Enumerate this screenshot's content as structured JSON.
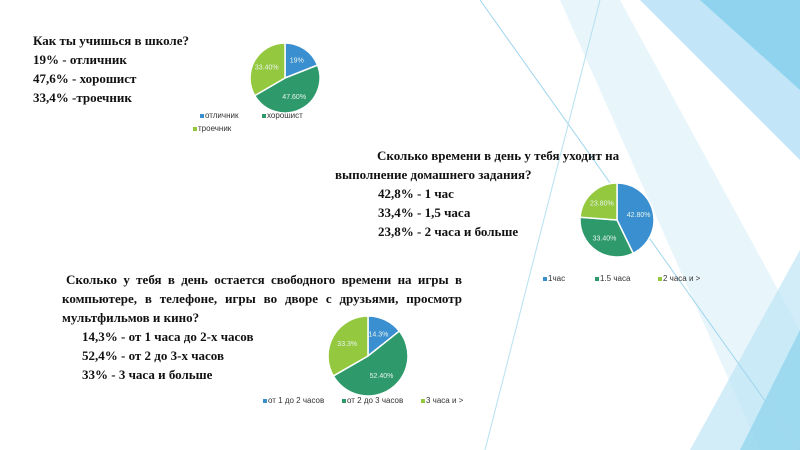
{
  "texts": [
    {
      "title": "Как ты учишься в школе?",
      "lines": [
        "19% - отличник",
        "47,6% - хорошист",
        "33,4%  -троечник"
      ]
    },
    {
      "title": "Сколько времени в день у тебя уходит на выполнение домашнего задания?",
      "lines": [
        "42,8% - 1 час",
        "33,4% - 1,5 часа",
        "23,8% - 2 часа и больше"
      ]
    },
    {
      "title": "Сколько у тебя в день остается свободного времени на игры в компьютере, в телефоне, игры во дворе с друзьями, просмотр мультфильмов и кино?",
      "lines": [
        "14,3% - от 1 часа до 2-х часов",
        "52,4% - от 2 до 3-х часов",
        "33% - 3 часа и больше"
      ]
    }
  ],
  "chart_data": [
    {
      "type": "pie",
      "categories": [
        "отличник",
        "хорошист",
        "троечник"
      ],
      "values": [
        19,
        47.6,
        33.4
      ],
      "value_labels": [
        "19%",
        "47.60%",
        "33.40%"
      ],
      "colors": [
        "#3a8fd0",
        "#2e9a6c",
        "#93c83f"
      ]
    },
    {
      "type": "pie",
      "categories": [
        "1час",
        "1.5 часа",
        "2 часа и >"
      ],
      "values": [
        42.8,
        33.4,
        23.8
      ],
      "value_labels": [
        "42.80%",
        "33.40%",
        "23.80%"
      ],
      "colors": [
        "#3a8fd0",
        "#2e9a6c",
        "#93c83f"
      ]
    },
    {
      "type": "pie",
      "categories": [
        "от 1 до 2 часов",
        "от 2 до 3 часов",
        "3 часа и >"
      ],
      "values": [
        14.3,
        52.4,
        33.3
      ],
      "value_labels": [
        "14.3%",
        "52.40%",
        "33.3%"
      ],
      "colors": [
        "#3a8fd0",
        "#2e9a6c",
        "#93c83f"
      ]
    }
  ]
}
